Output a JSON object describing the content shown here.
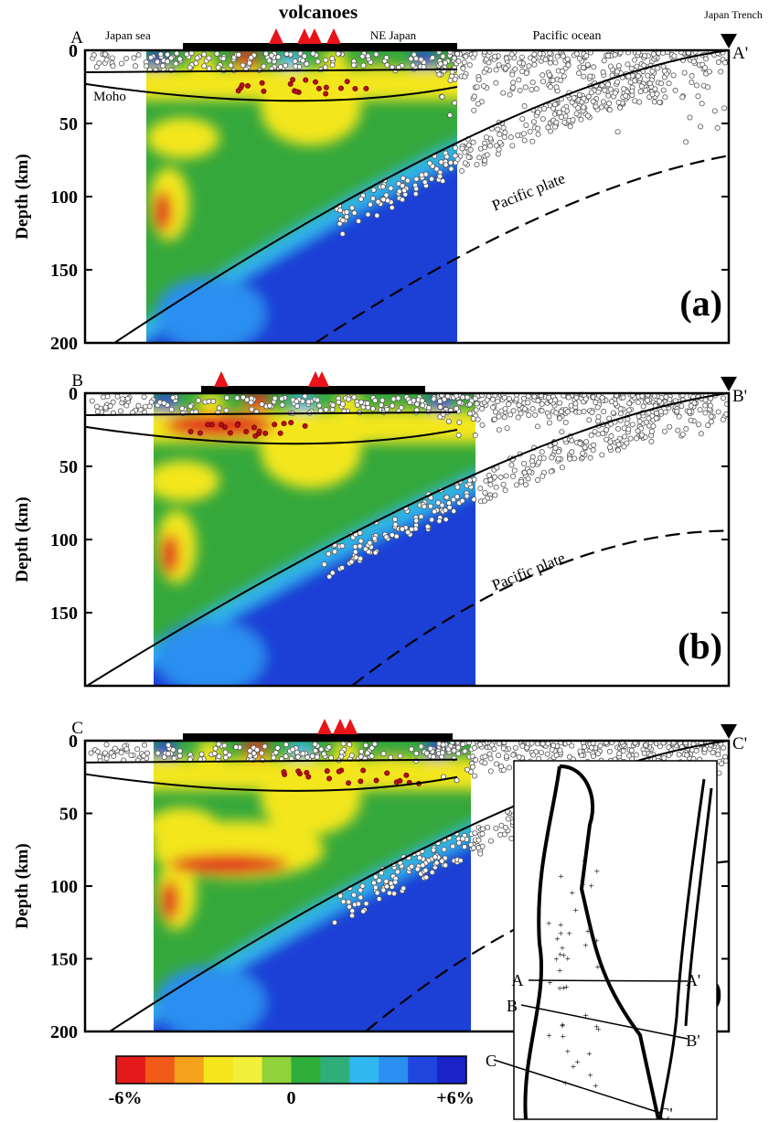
{
  "chart_data": [
    {
      "type": "section",
      "title": "volcanoes",
      "start_label": "A",
      "end_label": "A'",
      "annotations": [
        "Japan sea",
        "NE Japan",
        "Pacific ocean",
        "Japan Trench",
        "Moho",
        "Pacific plate"
      ],
      "panel_label": "(a)",
      "ylabel": "Depth (km)",
      "ylim": [
        0,
        200
      ],
      "yticks": [
        0,
        50,
        100,
        150,
        200
      ]
    },
    {
      "type": "section",
      "start_label": "B",
      "end_label": "B'",
      "annotations": [
        "Pacific plate"
      ],
      "panel_label": "(b)",
      "ylabel": "Depth (km)",
      "ylim": [
        0,
        200
      ],
      "yticks": [
        0,
        50,
        100,
        150
      ]
    },
    {
      "type": "section",
      "start_label": "C",
      "end_label": "C'",
      "panel_label": "(c)",
      "ylabel": "Depth (km)",
      "ylim": [
        0,
        200
      ],
      "yticks": [
        0,
        50,
        100,
        150,
        200
      ]
    }
  ],
  "colorbar": {
    "colors": [
      "#e41a1a",
      "#f25a1a",
      "#f7a21c",
      "#f5e51c",
      "#f2ef3a",
      "#8fd23a",
      "#2fae3a",
      "#2fae7a",
      "#31b7ef",
      "#2a8ff0",
      "#2146e0",
      "#1a22c8"
    ],
    "lim": [
      -6,
      6
    ],
    "ticks": [
      {
        "value": -6,
        "label": "-6%"
      },
      0,
      {
        "value": 6,
        "label": "+6%"
      }
    ]
  },
  "inset_map": {
    "labels": [
      "A",
      "A'",
      "B",
      "B'",
      "C",
      "C'"
    ]
  }
}
